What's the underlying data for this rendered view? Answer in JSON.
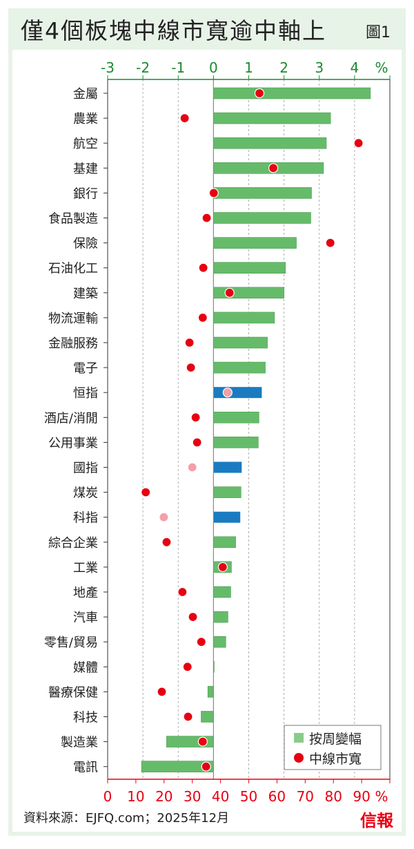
{
  "colors": {
    "bar": "#66bb6a",
    "bar_border": "#4a9f50",
    "index_bar": "#1a7bc0",
    "dot": "#e60012",
    "index_dot": "#f4a0a8",
    "top_axis": "#1a8a2e",
    "bottom_axis": "#e60012",
    "frame": "#e8f3e8"
  },
  "chart_data": {
    "type": "bar",
    "title": "僅4個板塊中線市寬逾中軸上",
    "figure_label": "圖1",
    "top_axis": {
      "label_unit": "%",
      "range": [
        -3,
        5
      ],
      "ticks": [
        -3,
        -2,
        -1,
        0,
        1,
        2,
        3,
        4
      ]
    },
    "bottom_axis": {
      "label_unit": "%",
      "range": [
        0,
        100
      ],
      "ticks": [
        0,
        10,
        20,
        30,
        40,
        50,
        60,
        70,
        80,
        90
      ]
    },
    "grid": "dashed vertical",
    "legend": {
      "placement": "bottom-right",
      "entries": [
        "按周變幅",
        "中線市寬"
      ]
    },
    "categories": [
      "金屬",
      "農業",
      "航空",
      "基建",
      "銀行",
      "食品製造",
      "保險",
      "石油化工",
      "建築",
      "物流運輸",
      "金融服務",
      "電子",
      "恒指",
      "酒店/消閒",
      "公用事業",
      "國指",
      "煤炭",
      "科指",
      "綜合企業",
      "工業",
      "地產",
      "汽車",
      "零售/貿易",
      "媒體",
      "醫療保健",
      "科技",
      "製造業",
      "電訊"
    ],
    "is_index": [
      false,
      false,
      false,
      false,
      false,
      false,
      false,
      false,
      false,
      false,
      false,
      false,
      true,
      false,
      false,
      true,
      false,
      true,
      false,
      false,
      false,
      false,
      false,
      false,
      false,
      false,
      false,
      false
    ],
    "series": [
      {
        "name": "按周變幅",
        "axis": "top",
        "unit": "%",
        "values": [
          4.45,
          3.32,
          3.2,
          3.12,
          2.78,
          2.76,
          2.35,
          2.04,
          2.0,
          1.73,
          1.53,
          1.47,
          1.37,
          1.29,
          1.27,
          0.8,
          0.78,
          0.76,
          0.63,
          0.51,
          0.49,
          0.41,
          0.35,
          0.02,
          -0.16,
          -0.35,
          -1.33,
          -2.04
        ]
      },
      {
        "name": "中線市寬",
        "axis": "bottom",
        "unit": "%",
        "values": [
          53.8,
          27.3,
          88.9,
          58.7,
          37.6,
          35.1,
          78.9,
          33.9,
          43.2,
          33.7,
          29.0,
          29.5,
          42.5,
          31.2,
          31.7,
          30.0,
          13.5,
          19.9,
          20.9,
          40.8,
          26.5,
          30.2,
          33.2,
          28.3,
          19.2,
          28.5,
          33.7,
          34.9
        ]
      }
    ]
  },
  "footer": {
    "source": "資料來源：EJFQ.com；2025年12月",
    "logo": "信報"
  }
}
